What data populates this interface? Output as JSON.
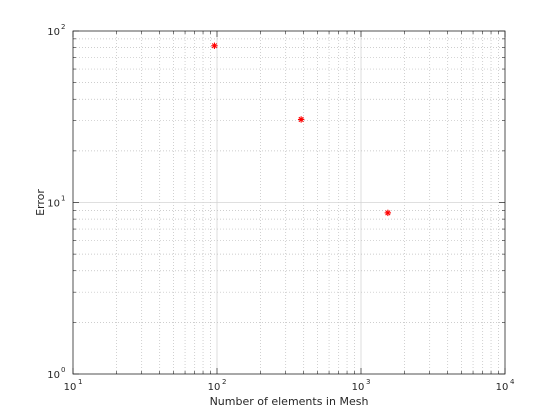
{
  "chart_data": {
    "type": "scatter",
    "xlabel": "Number of elements in Mesh",
    "ylabel": "Error",
    "xscale": "log",
    "yscale": "log",
    "xlim": [
      10,
      10000
    ],
    "ylim": [
      1,
      100
    ],
    "grid": true,
    "marker": "*",
    "marker_color": "#ff0000",
    "x_ticks": [
      {
        "base": "10",
        "exp": "1",
        "value": 10
      },
      {
        "base": "10",
        "exp": "2",
        "value": 100
      },
      {
        "base": "10",
        "exp": "3",
        "value": 1000
      },
      {
        "base": "10",
        "exp": "4",
        "value": 10000
      }
    ],
    "y_ticks": [
      {
        "base": "10",
        "exp": "0",
        "value": 1
      },
      {
        "base": "10",
        "exp": "1",
        "value": 10
      },
      {
        "base": "10",
        "exp": "2",
        "value": 100
      }
    ],
    "series": [
      {
        "x": [
          96,
          384,
          1536
        ],
        "y": [
          82,
          30.5,
          8.7
        ]
      }
    ]
  }
}
